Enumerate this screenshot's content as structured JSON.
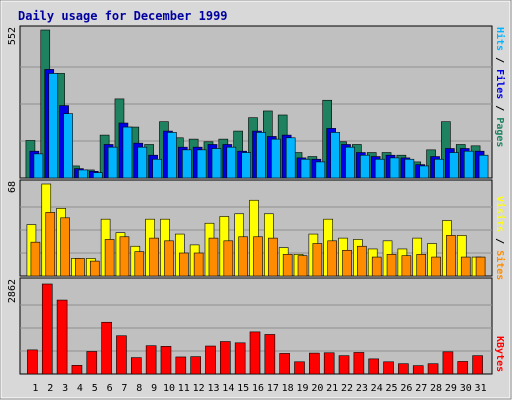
{
  "title": "Daily usage for December 1999",
  "colors": {
    "hits": "#1e8260",
    "files": "#0000e6",
    "pages": "#00b4ff",
    "visits": "#ffff00",
    "sites": "#ff8c00",
    "kbytes": "#ff0000",
    "weekend_day": "#1e8260",
    "weekday": "#000000",
    "panel_bg": "#c0c0c0",
    "frame_bg": "#d8d8d8"
  },
  "legend": {
    "top": {
      "pages": "Pages",
      "sep1": " / ",
      "files": "Files",
      "sep2": " / ",
      "hits": "Hits"
    },
    "mid": {
      "sites": "Sites",
      "sep": " / ",
      "visits": "Visits"
    },
    "bot": {
      "kbytes": "KBytes"
    }
  },
  "chart_data": [
    {
      "type": "bar",
      "panel": "hits-files-pages",
      "ymax_label": "552",
      "ylim": [
        0,
        552
      ],
      "categories": [
        "1",
        "2",
        "3",
        "4",
        "5",
        "6",
        "7",
        "8",
        "9",
        "10",
        "11",
        "12",
        "13",
        "14",
        "15",
        "16",
        "17",
        "18",
        "19",
        "20",
        "21",
        "22",
        "23",
        "24",
        "25",
        "26",
        "27",
        "28",
        "29",
        "30",
        "31"
      ],
      "weekend": [
        "4",
        "5",
        "11",
        "12",
        "18",
        "19",
        "25",
        "26"
      ],
      "series": [
        {
          "name": "Hits",
          "values": [
            140,
            552,
            390,
            45,
            30,
            160,
            295,
            190,
            125,
            210,
            150,
            145,
            135,
            145,
            175,
            225,
            250,
            235,
            95,
            80,
            290,
            135,
            125,
            95,
            95,
            85,
            60,
            105,
            210,
            125,
            120
          ]
        },
        {
          "name": "Files",
          "values": [
            100,
            405,
            270,
            35,
            25,
            125,
            205,
            130,
            85,
            175,
            115,
            115,
            125,
            125,
            100,
            175,
            155,
            160,
            75,
            70,
            185,
            125,
            95,
            80,
            85,
            75,
            50,
            80,
            110,
            110,
            100
          ]
        },
        {
          "name": "Pages",
          "values": [
            90,
            390,
            240,
            30,
            20,
            115,
            190,
            115,
            70,
            170,
            105,
            105,
            110,
            115,
            95,
            170,
            145,
            150,
            70,
            60,
            170,
            115,
            85,
            70,
            75,
            70,
            45,
            70,
            95,
            100,
            85
          ]
        }
      ]
    },
    {
      "type": "bar",
      "panel": "visits-sites",
      "ymax_label": "68",
      "ylim": [
        0,
        68
      ],
      "categories": [
        "1",
        "2",
        "3",
        "4",
        "5",
        "6",
        "7",
        "8",
        "9",
        "10",
        "11",
        "12",
        "13",
        "14",
        "15",
        "16",
        "17",
        "18",
        "19",
        "20",
        "21",
        "22",
        "23",
        "24",
        "25",
        "26",
        "27",
        "28",
        "29",
        "30",
        "31"
      ],
      "series": [
        {
          "name": "Visits",
          "values": [
            38,
            68,
            50,
            13,
            13,
            42,
            32,
            22,
            42,
            42,
            31,
            23,
            39,
            44,
            46,
            56,
            46,
            21,
            16,
            31,
            42,
            28,
            27,
            20,
            26,
            20,
            28,
            24,
            41,
            30,
            14
          ]
        },
        {
          "name": "Sites",
          "values": [
            25,
            47,
            43,
            13,
            11,
            27,
            29,
            18,
            28,
            26,
            17,
            17,
            28,
            26,
            29,
            29,
            28,
            16,
            15,
            24,
            26,
            19,
            22,
            14,
            16,
            15,
            16,
            14,
            30,
            14,
            14
          ]
        }
      ]
    },
    {
      "type": "bar",
      "panel": "kbytes",
      "ymax_label": "2862",
      "ylim": [
        0,
        2862
      ],
      "categories": [
        "1",
        "2",
        "3",
        "4",
        "5",
        "6",
        "7",
        "8",
        "9",
        "10",
        "11",
        "12",
        "13",
        "14",
        "15",
        "16",
        "17",
        "18",
        "19",
        "20",
        "21",
        "22",
        "23",
        "24",
        "25",
        "26",
        "27",
        "28",
        "29",
        "30",
        "31"
      ],
      "series": [
        {
          "name": "KBytes",
          "values": [
            750,
            2800,
            2300,
            270,
            700,
            1610,
            1190,
            510,
            880,
            860,
            530,
            540,
            870,
            1010,
            970,
            1310,
            1230,
            640,
            380,
            650,
            660,
            570,
            670,
            470,
            380,
            320,
            260,
            320,
            690,
            390,
            570
          ]
        }
      ]
    }
  ]
}
